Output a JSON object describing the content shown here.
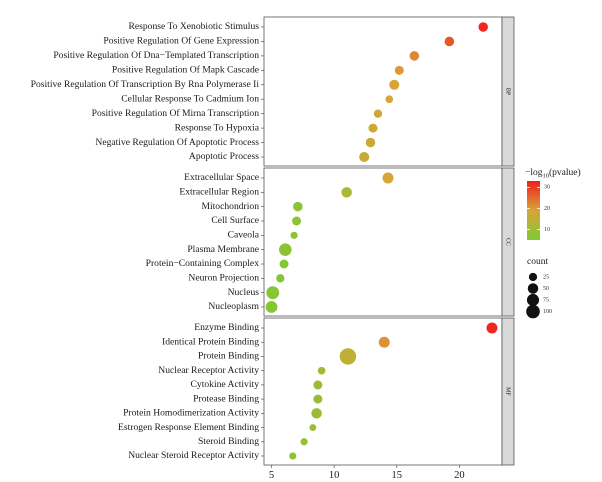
{
  "chart_data": {
    "type": "scatter",
    "xlabel": "",
    "ylabel": "",
    "xlim": [
      4.4,
      23.4
    ],
    "x_ticks": [
      5,
      10,
      15,
      20
    ],
    "grid": false,
    "facets": [
      {
        "label": "BP",
        "points": [
          {
            "term": "Response To Xenobiotic Stimulus",
            "x": 21.9,
            "count": 30,
            "log10p": 32
          },
          {
            "term": "Positive Regulation Of Gene Expression",
            "x": 19.2,
            "count": 30,
            "log10p": 27
          },
          {
            "term": "Positive Regulation Of Dna−Templated Transcription",
            "x": 16.4,
            "count": 30,
            "log10p": 22
          },
          {
            "term": "Positive Regulation Of Mapk Cascade",
            "x": 15.2,
            "count": 25,
            "log10p": 20
          },
          {
            "term": "Positive Regulation Of Transcription By Rna Polymerase Ii",
            "x": 14.8,
            "count": 35,
            "log10p": 19
          },
          {
            "term": "Cellular Response To Cadmium Ion",
            "x": 14.4,
            "count": 15,
            "log10p": 18
          },
          {
            "term": "Positive Regulation Of Mirna Transcription",
            "x": 13.5,
            "count": 20,
            "log10p": 17
          },
          {
            "term": "Response To Hypoxia",
            "x": 13.1,
            "count": 25,
            "log10p": 17
          },
          {
            "term": "Negative Regulation Of Apoptotic Process",
            "x": 12.9,
            "count": 30,
            "log10p": 17
          },
          {
            "term": "Apoptotic Process",
            "x": 12.4,
            "count": 35,
            "log10p": 16
          }
        ]
      },
      {
        "label": "CC",
        "points": [
          {
            "term": "Extracellular Space",
            "x": 14.3,
            "count": 45,
            "log10p": 19
          },
          {
            "term": "Extracellular Region",
            "x": 11.0,
            "count": 40,
            "log10p": 12
          },
          {
            "term": "Mitochondrion",
            "x": 7.1,
            "count": 30,
            "log10p": 7
          },
          {
            "term": "Cell Surface",
            "x": 7.0,
            "count": 25,
            "log10p": 7
          },
          {
            "term": "Caveola",
            "x": 6.8,
            "count": 12,
            "log10p": 7
          },
          {
            "term": "Plasma Membrane",
            "x": 6.1,
            "count": 65,
            "log10p": 7
          },
          {
            "term": "Protein−Containing Complex",
            "x": 6.0,
            "count": 25,
            "log10p": 6
          },
          {
            "term": "Neuron Projection",
            "x": 5.7,
            "count": 20,
            "log10p": 6
          },
          {
            "term": "Nucleus",
            "x": 5.1,
            "count": 70,
            "log10p": 6
          },
          {
            "term": "Nucleoplasm",
            "x": 5.0,
            "count": 55,
            "log10p": 6
          }
        ]
      },
      {
        "label": "MF",
        "points": [
          {
            "term": "Enzyme Binding",
            "x": 22.6,
            "count": 45,
            "log10p": 32
          },
          {
            "term": "Identical Protein Binding",
            "x": 14.0,
            "count": 45,
            "log10p": 21
          },
          {
            "term": "Protein Binding",
            "x": 11.1,
            "count": 130,
            "log10p": 15
          },
          {
            "term": "Nuclear Receptor Activity",
            "x": 9.0,
            "count": 15,
            "log10p": 10
          },
          {
            "term": "Cytokine Activity",
            "x": 8.7,
            "count": 25,
            "log10p": 9
          },
          {
            "term": "Protease Binding",
            "x": 8.7,
            "count": 25,
            "log10p": 9
          },
          {
            "term": "Protein Homodimerization Activity",
            "x": 8.6,
            "count": 40,
            "log10p": 9
          },
          {
            "term": "Estrogen Response Element Binding",
            "x": 8.3,
            "count": 10,
            "log10p": 9
          },
          {
            "term": "Steroid Binding",
            "x": 7.6,
            "count": 12,
            "log10p": 8
          },
          {
            "term": "Nuclear Steroid Receptor Activity",
            "x": 6.7,
            "count": 12,
            "log10p": 7
          }
        ]
      }
    ],
    "color_legend": {
      "title": "−log",
      "title_sub": "10",
      "title_rest": "(pvalue)",
      "range": [
        5,
        33
      ],
      "ticks": [
        10,
        20,
        30
      ],
      "low_color": "#7fc935",
      "mid_color": "#d9a437",
      "high_color": "#f01d1d"
    },
    "size_legend": {
      "title": "count",
      "values": [
        25,
        50,
        75,
        100
      ],
      "position": "right"
    }
  }
}
